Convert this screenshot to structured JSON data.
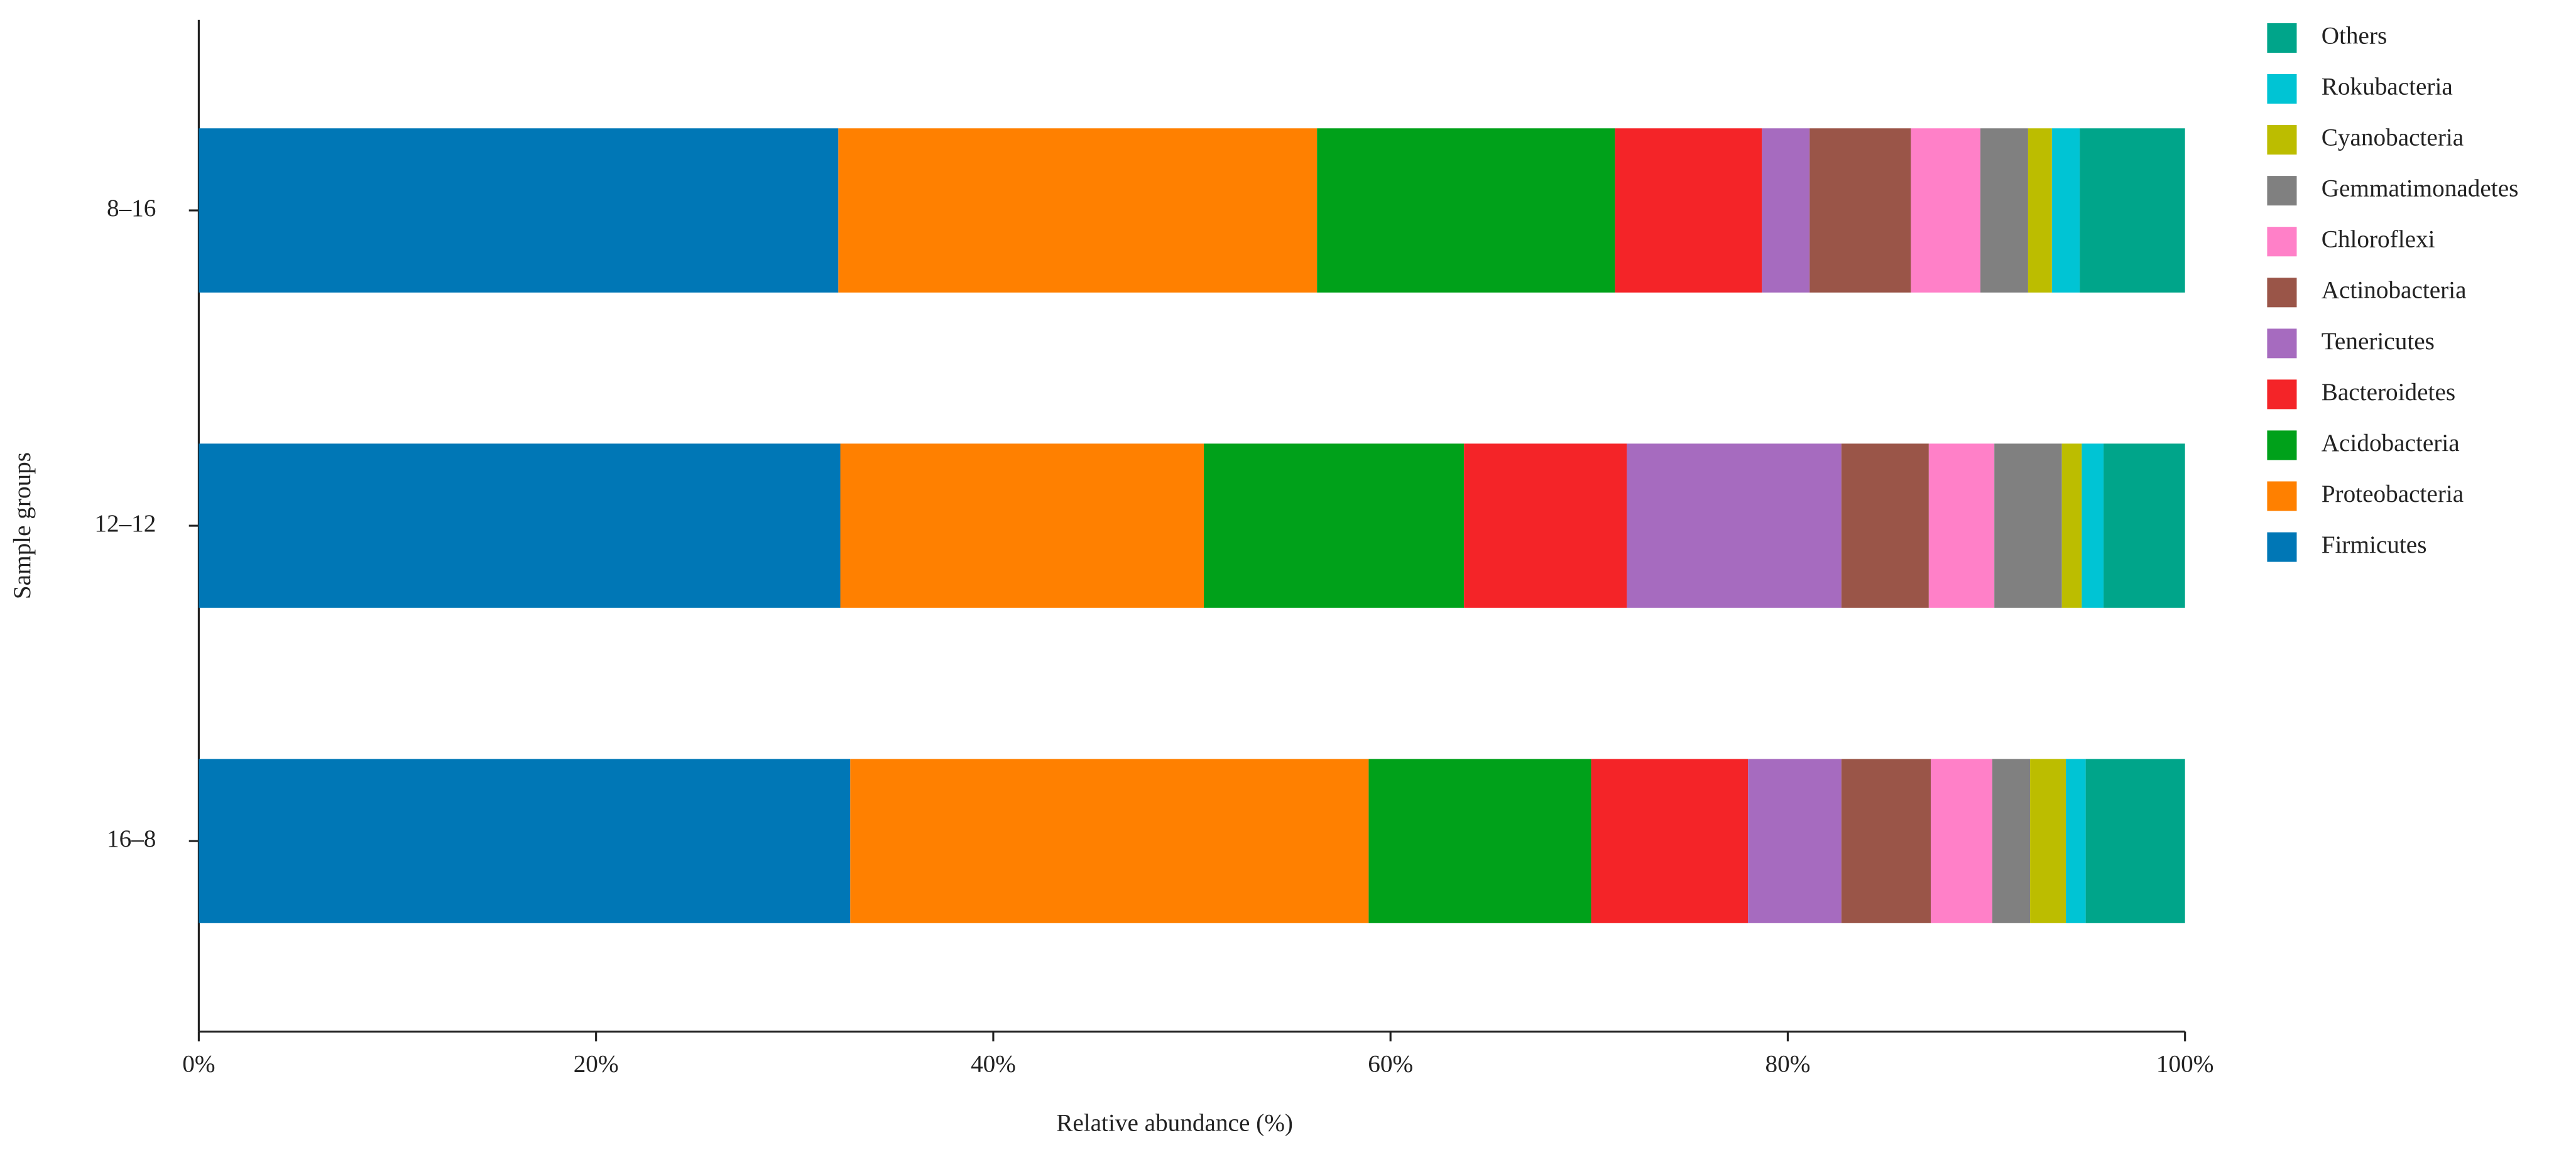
{
  "chart_data": {
    "type": "stacked_barh",
    "x_label": "Relative abundance (%)",
    "y_label": "Sample groups",
    "categories": [
      "8–16",
      "12–12",
      "16–8"
    ],
    "series": [
      {
        "name": "Firmicutes",
        "color": "#0077b6",
        "values": [
          32.2,
          32.3,
          32.8
        ]
      },
      {
        "name": "Proteobacteria",
        "color": "#ff8000",
        "values": [
          24.1,
          18.3,
          26.1
        ]
      },
      {
        "name": "Acidobacteria",
        "color": "#00a11a",
        "values": [
          15.0,
          13.1,
          11.2
        ]
      },
      {
        "name": "Bacteroidetes",
        "color": "#f42428",
        "values": [
          7.4,
          8.2,
          7.9
        ]
      },
      {
        "name": "Tenericutes",
        "color": "#a66bbf",
        "values": [
          2.4,
          10.8,
          4.7
        ]
      },
      {
        "name": "Actinobacteria",
        "color": "#9a5548",
        "values": [
          5.1,
          4.4,
          4.5
        ]
      },
      {
        "name": "Chloroflexi",
        "color": "#ff80c8",
        "values": [
          3.5,
          3.3,
          3.1
        ]
      },
      {
        "name": "Gemmatimonadetes",
        "color": "#808080",
        "values": [
          2.4,
          3.4,
          1.9
        ]
      },
      {
        "name": "Cyanobacteria",
        "color": "#bcbd00",
        "values": [
          1.2,
          1.0,
          1.8
        ]
      },
      {
        "name": "Rokubacteria",
        "color": "#00c4d4",
        "values": [
          1.4,
          1.1,
          1.0
        ]
      },
      {
        "name": "Others",
        "color": "#00a58a",
        "values": [
          5.3,
          4.1,
          5.0
        ]
      }
    ],
    "xlim": [
      0,
      100
    ],
    "xticks": [
      {
        "value": 0,
        "label": "0%"
      },
      {
        "value": 20,
        "label": "20%"
      },
      {
        "value": 40,
        "label": "40%"
      },
      {
        "value": 60,
        "label": "60%"
      },
      {
        "value": 80,
        "label": "80%"
      },
      {
        "value": 100,
        "label": "100%"
      }
    ]
  }
}
